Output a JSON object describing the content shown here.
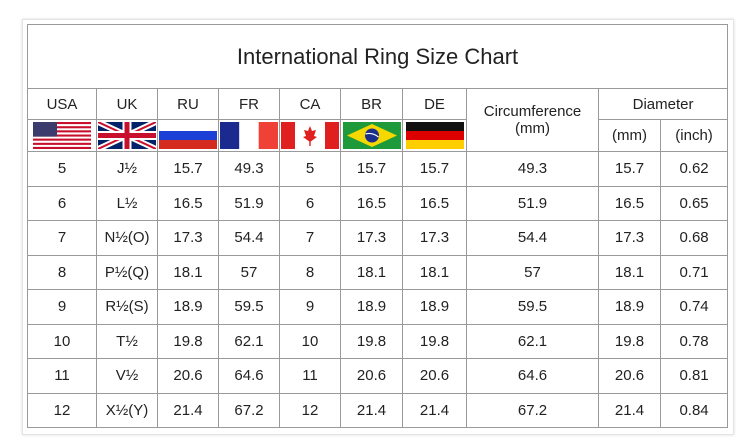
{
  "title": "International Ring Size Chart",
  "headers": {
    "usa": "USA",
    "uk": "UK",
    "ru": "RU",
    "fr": "FR",
    "ca": "CA",
    "br": "BR",
    "de": "DE",
    "circumference": "Circumference",
    "circumference_unit": "(mm)",
    "diameter": "Diameter",
    "diameter_mm": "(mm)",
    "diameter_inch": "(inch)"
  },
  "flags": [
    "us-flag-icon",
    "uk-flag-icon",
    "russia-flag-icon",
    "france-flag-icon",
    "canada-flag-icon",
    "brazil-flag-icon",
    "germany-flag-icon"
  ],
  "rows": [
    [
      "5",
      "J½",
      "15.7",
      "49.3",
      "5",
      "15.7",
      "15.7",
      "49.3",
      "15.7",
      "0.62"
    ],
    [
      "6",
      "L½",
      "16.5",
      "51.9",
      "6",
      "16.5",
      "16.5",
      "51.9",
      "16.5",
      "0.65"
    ],
    [
      "7",
      "N½(O)",
      "17.3",
      "54.4",
      "7",
      "17.3",
      "17.3",
      "54.4",
      "17.3",
      "0.68"
    ],
    [
      "8",
      "P½(Q)",
      "18.1",
      "57",
      "8",
      "18.1",
      "18.1",
      "57",
      "18.1",
      "0.71"
    ],
    [
      "9",
      "R½(S)",
      "18.9",
      "59.5",
      "9",
      "18.9",
      "18.9",
      "59.5",
      "18.9",
      "0.74"
    ],
    [
      "10",
      "T½",
      "19.8",
      "62.1",
      "10",
      "19.8",
      "19.8",
      "62.1",
      "19.8",
      "0.78"
    ],
    [
      "11",
      "V½",
      "20.6",
      "64.6",
      "11",
      "20.6",
      "20.6",
      "64.6",
      "20.6",
      "0.81"
    ],
    [
      "12",
      "X½(Y)",
      "21.4",
      "67.2",
      "12",
      "21.4",
      "21.4",
      "67.2",
      "21.4",
      "0.84"
    ]
  ]
}
